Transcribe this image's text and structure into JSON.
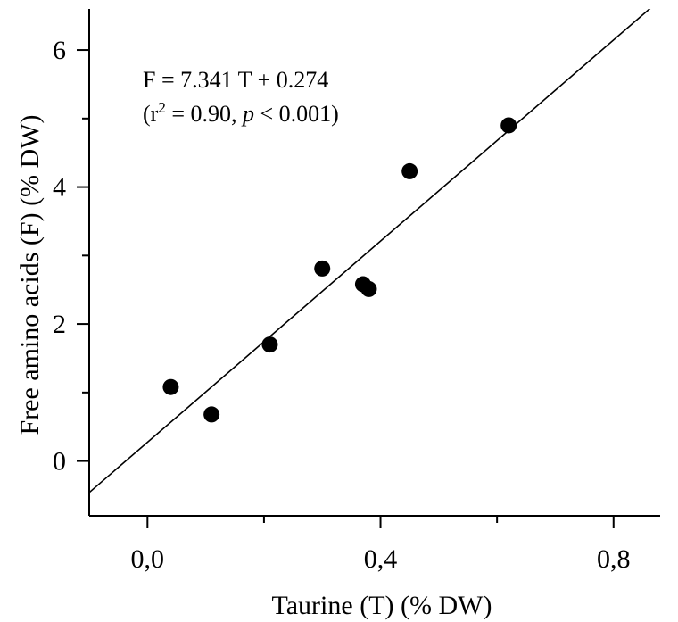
{
  "chart_data": {
    "type": "scatter",
    "xlabel": "Taurine (T) (% DW)",
    "ylabel": "Free amino acids (F) (% DW)",
    "xlim": [
      -0.1,
      0.88
    ],
    "ylim": [
      -0.8,
      6.6
    ],
    "x_ticks": [
      {
        "value": 0.0,
        "label": "0,0"
      },
      {
        "value": 0.4,
        "label": "0,4"
      },
      {
        "value": 0.8,
        "label": "0,8"
      }
    ],
    "x_minor_ticks": [
      0.2,
      0.6
    ],
    "y_ticks": [
      {
        "value": 0,
        "label": "0"
      },
      {
        "value": 2,
        "label": "2"
      },
      {
        "value": 4,
        "label": "4"
      },
      {
        "value": 6,
        "label": "6"
      }
    ],
    "y_minor_ticks": [
      1,
      3,
      5
    ],
    "grid": false,
    "legend": "none",
    "points": [
      {
        "x": 0.04,
        "y": 1.08
      },
      {
        "x": 0.11,
        "y": 0.68
      },
      {
        "x": 0.21,
        "y": 1.7
      },
      {
        "x": 0.3,
        "y": 2.81
      },
      {
        "x": 0.37,
        "y": 2.58
      },
      {
        "x": 0.38,
        "y": 2.51
      },
      {
        "x": 0.45,
        "y": 4.23
      },
      {
        "x": 0.62,
        "y": 4.9
      }
    ],
    "regression": {
      "slope": 7.341,
      "intercept": 0.274
    },
    "annotation": {
      "equation": "F = 7.341 T + 0.274",
      "stats_open": "(r",
      "stats_sup": "2",
      "stats_mid": " = 0.90, ",
      "stats_p": "p",
      "stats_close": " < 0.001)"
    }
  }
}
